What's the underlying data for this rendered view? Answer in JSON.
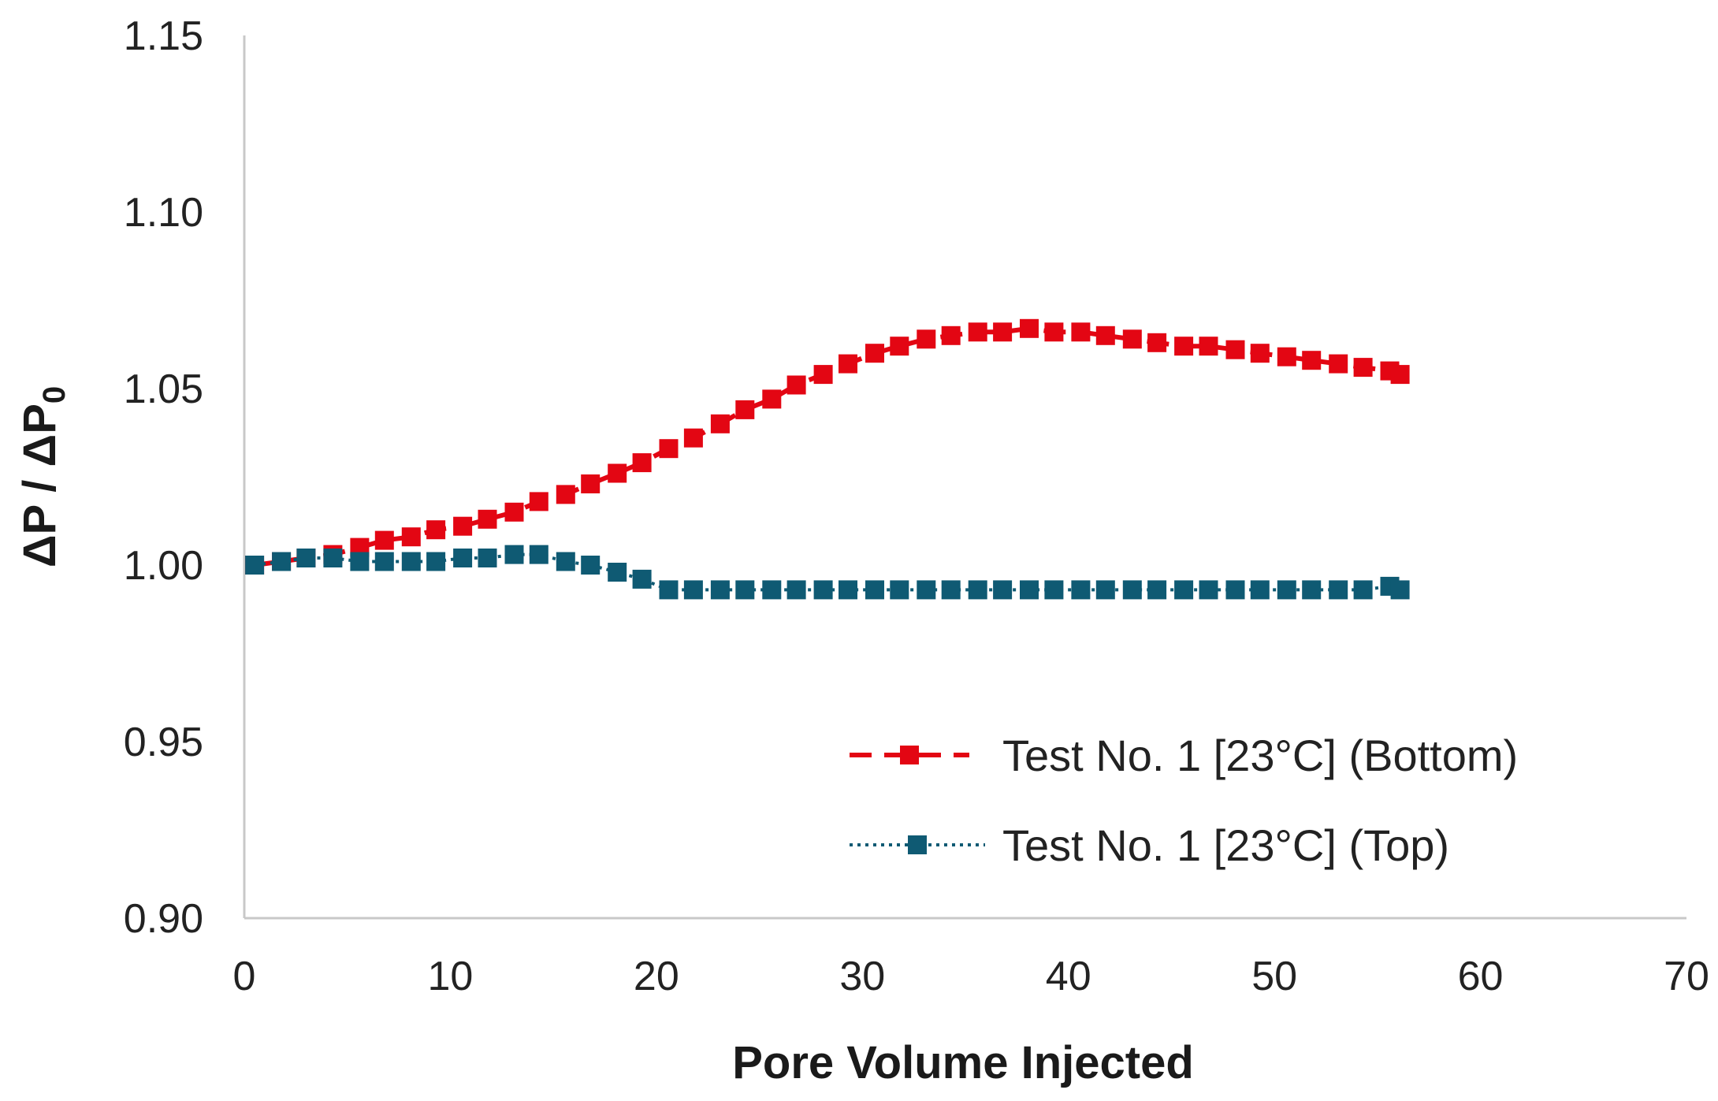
{
  "chart_data": {
    "type": "line",
    "title": "",
    "xlabel": "Pore Volume Injected",
    "ylabel": "ΔP / ΔP",
    "ylabel_subscript": "0",
    "xlim": [
      0,
      70
    ],
    "ylim": [
      0.9,
      1.15
    ],
    "xticks": [
      0,
      10,
      20,
      30,
      40,
      50,
      60,
      70
    ],
    "xtick_labels": [
      "0",
      "10",
      "20",
      "30",
      "40",
      "50",
      "60",
      "70"
    ],
    "yticks": [
      0.9,
      0.95,
      1.0,
      1.05,
      1.1,
      1.15
    ],
    "ytick_labels": [
      "0.90",
      "0.95",
      "1.00",
      "1.05",
      "1.10",
      "1.15"
    ],
    "grid": false,
    "legend_position": "bottom-right",
    "series": [
      {
        "name": "Test No. 1 [23°C] (Bottom)",
        "color": "#e30613",
        "line_style": "dashed",
        "marker": "square",
        "x": [
          0.5,
          1.8,
          3.0,
          4.3,
          5.6,
          6.8,
          8.1,
          9.3,
          10.6,
          11.8,
          13.1,
          14.3,
          15.6,
          16.8,
          18.1,
          19.3,
          20.6,
          21.8,
          23.1,
          24.3,
          25.6,
          26.8,
          28.1,
          29.3,
          30.6,
          31.8,
          33.1,
          34.3,
          35.6,
          36.8,
          38.1,
          39.3,
          40.6,
          41.8,
          43.1,
          44.3,
          45.6,
          46.8,
          48.1,
          49.3,
          50.6,
          51.8,
          53.1,
          54.3,
          55.6,
          56.1
        ],
        "y": [
          1.0,
          1.001,
          1.002,
          1.003,
          1.005,
          1.007,
          1.008,
          1.01,
          1.011,
          1.013,
          1.015,
          1.018,
          1.02,
          1.023,
          1.026,
          1.029,
          1.033,
          1.036,
          1.04,
          1.044,
          1.047,
          1.051,
          1.054,
          1.057,
          1.06,
          1.062,
          1.064,
          1.065,
          1.066,
          1.066,
          1.067,
          1.066,
          1.066,
          1.065,
          1.064,
          1.063,
          1.062,
          1.062,
          1.061,
          1.06,
          1.059,
          1.058,
          1.057,
          1.056,
          1.055,
          1.054
        ]
      },
      {
        "name": "Test No. 1 [23°C] (Top)",
        "color": "#0f5a73",
        "line_style": "dotted",
        "marker": "square",
        "x": [
          0.5,
          1.8,
          3.0,
          4.3,
          5.6,
          6.8,
          8.1,
          9.3,
          10.6,
          11.8,
          13.1,
          14.3,
          15.6,
          16.8,
          18.1,
          19.3,
          20.6,
          21.8,
          23.1,
          24.3,
          25.6,
          26.8,
          28.1,
          29.3,
          30.6,
          31.8,
          33.1,
          34.3,
          35.6,
          36.8,
          38.1,
          39.3,
          40.6,
          41.8,
          43.1,
          44.3,
          45.6,
          46.8,
          48.1,
          49.3,
          50.6,
          51.8,
          53.1,
          54.3,
          55.6,
          56.1
        ],
        "y": [
          1.0,
          1.001,
          1.002,
          1.002,
          1.001,
          1.001,
          1.001,
          1.001,
          1.002,
          1.002,
          1.003,
          1.003,
          1.001,
          1.0,
          0.998,
          0.996,
          0.993,
          0.993,
          0.993,
          0.993,
          0.993,
          0.993,
          0.993,
          0.993,
          0.993,
          0.993,
          0.993,
          0.993,
          0.993,
          0.993,
          0.993,
          0.993,
          0.993,
          0.993,
          0.993,
          0.993,
          0.993,
          0.993,
          0.993,
          0.993,
          0.993,
          0.993,
          0.993,
          0.993,
          0.994,
          0.993
        ]
      }
    ]
  }
}
